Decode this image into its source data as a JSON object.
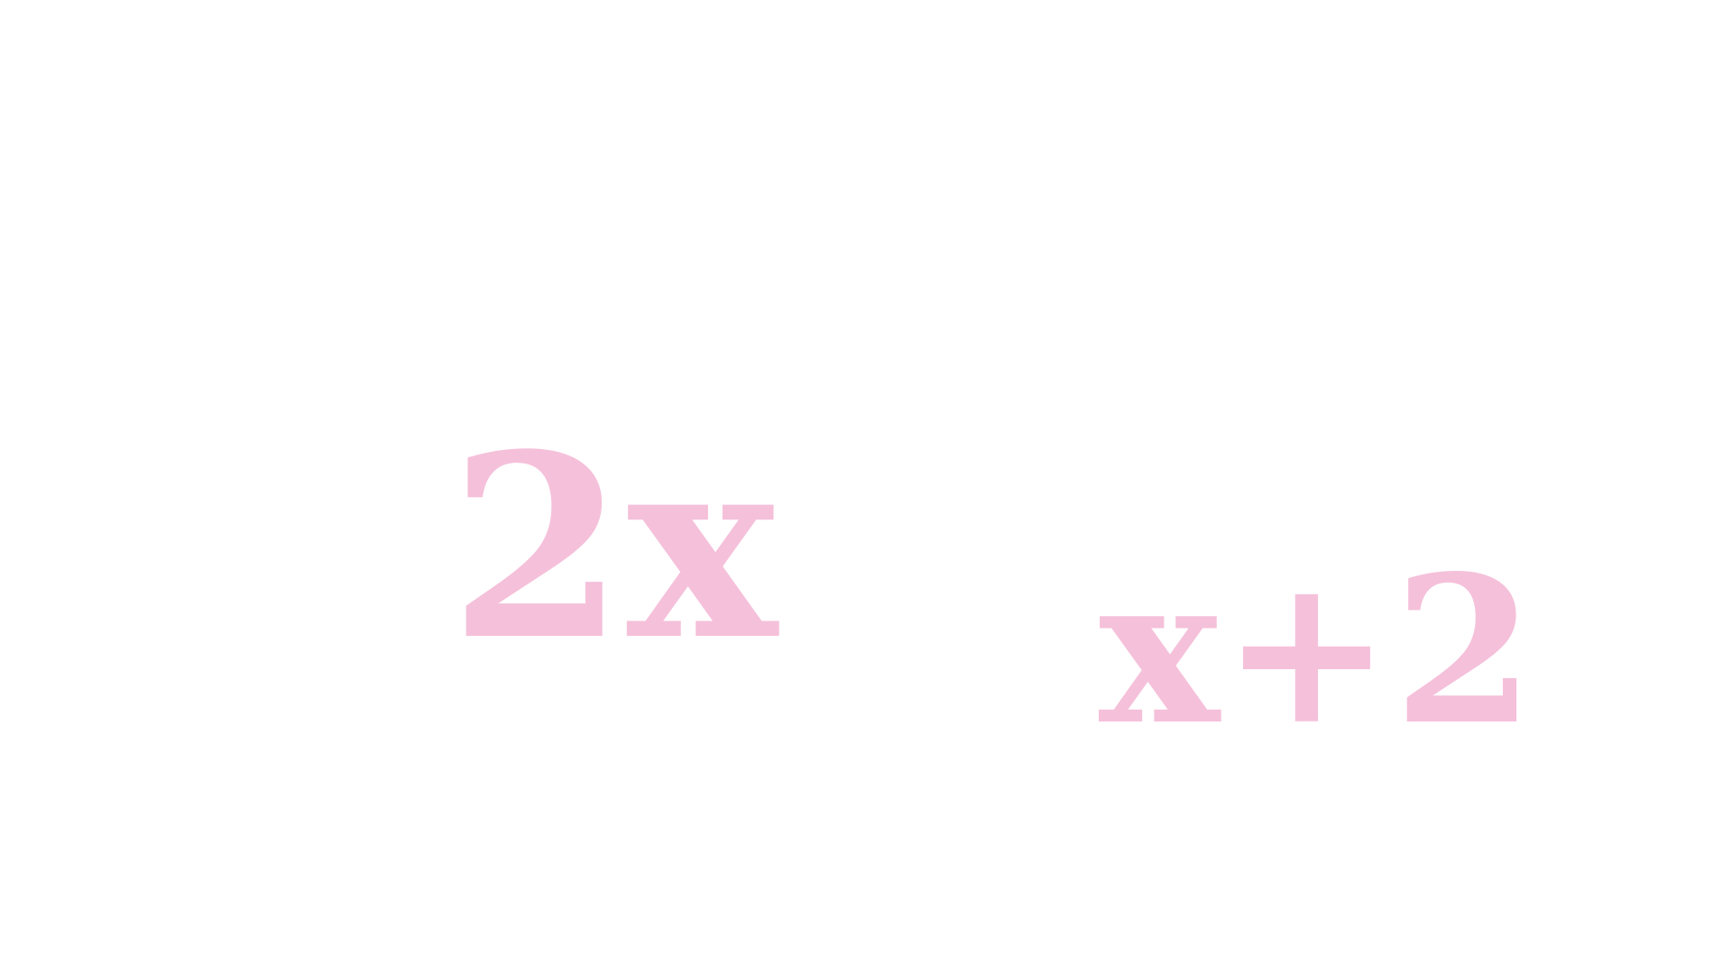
{
  "expressions": {
    "left": "2x",
    "right": "x+2"
  },
  "colors": {
    "background": "#ffffff",
    "text": "#f5c0da"
  }
}
